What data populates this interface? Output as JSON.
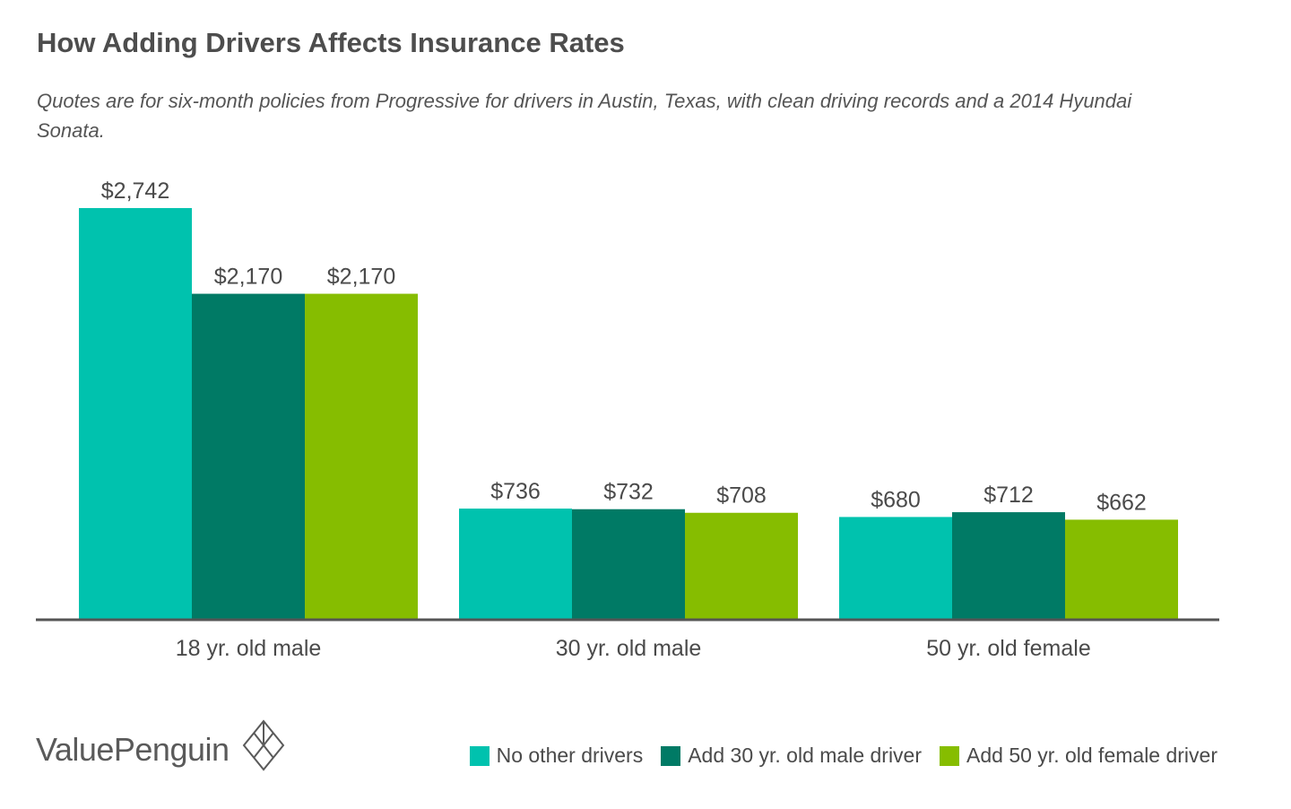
{
  "title": "How Adding Drivers Affects Insurance Rates",
  "subtitle": "Quotes are for six-month policies from Progressive for drivers in Austin, Texas, with clean driving records and a 2014 Hyundai Sonata.",
  "brand": {
    "name": "ValuePenguin",
    "icon": "diamond-logo-icon"
  },
  "colors": {
    "series_1": "#00c2ae",
    "series_2": "#007a65",
    "series_3": "#86bd00",
    "axis": "#555555",
    "label": "#4a4a4a"
  },
  "chart_data": {
    "type": "bar",
    "categories": [
      "18 yr. old male",
      "30 yr. old male",
      "50 yr. old female"
    ],
    "series": [
      {
        "name": "No other drivers",
        "values": [
          2742,
          736,
          680
        ],
        "labels": [
          "$2,742",
          "$736",
          "$680"
        ]
      },
      {
        "name": "Add 30 yr. old male driver",
        "values": [
          2170,
          732,
          712
        ],
        "labels": [
          "$2,170",
          "$732",
          "$712"
        ]
      },
      {
        "name": "Add 50 yr. old female driver",
        "values": [
          2170,
          708,
          662
        ],
        "labels": [
          "$2,170",
          "$708",
          "$662"
        ]
      }
    ],
    "ylim": [
      0,
      2742
    ],
    "grid": false,
    "legend_position": "bottom-right",
    "xlabel": "",
    "ylabel": ""
  }
}
